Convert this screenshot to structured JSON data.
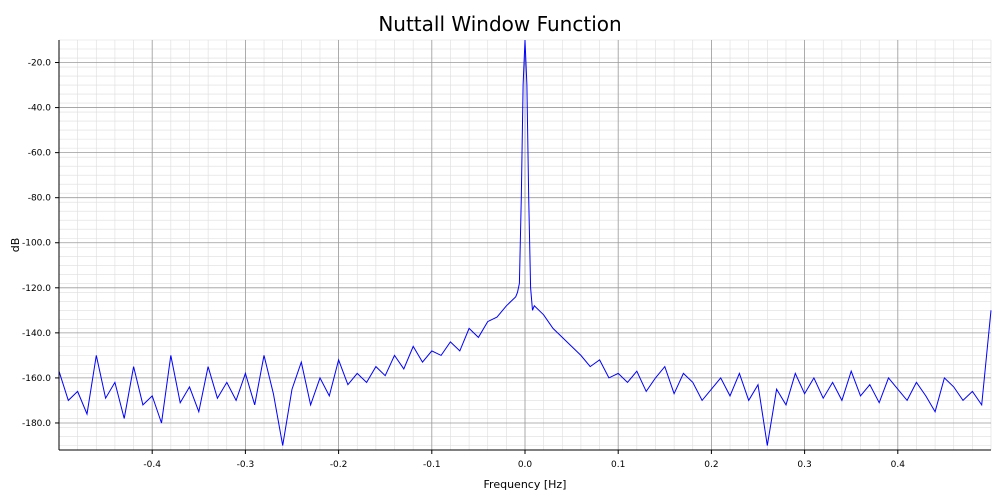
{
  "chart_data": {
    "type": "line",
    "title": "Nuttall Window Function",
    "xlabel": "Frequency [Hz]",
    "ylabel": "dB",
    "xlim": [
      -0.5,
      0.5
    ],
    "ylim": [
      -192,
      -10
    ],
    "x_ticks": [
      -0.4,
      -0.3,
      -0.2,
      -0.1,
      0.0,
      0.1,
      0.2,
      0.3,
      0.4
    ],
    "x_tick_labels": [
      "-0.4",
      "-0.3",
      "-0.2",
      "-0.1",
      "0.0",
      "0.1",
      "0.2",
      "0.3",
      "0.4"
    ],
    "y_ticks": [
      -180,
      -160,
      -140,
      -120,
      -100,
      -80,
      -60,
      -40,
      -20
    ],
    "y_tick_labels": [
      "-180.0",
      "-160.0",
      "-140.0",
      "-120.0",
      "-100.0",
      "-80.0",
      "-60.0",
      "-40.0",
      "-20.0"
    ],
    "grid": "major and minor",
    "line_color": "#0000ff",
    "series": [
      {
        "x": [
          -0.5,
          -0.49,
          -0.48,
          -0.47,
          -0.46,
          -0.45,
          -0.44,
          -0.43,
          -0.42,
          -0.41,
          -0.4,
          -0.39,
          -0.38,
          -0.37,
          -0.36,
          -0.35,
          -0.34,
          -0.33,
          -0.32,
          -0.31,
          -0.3,
          -0.29,
          -0.28,
          -0.27,
          -0.26,
          -0.25,
          -0.24,
          -0.23,
          -0.22,
          -0.21,
          -0.2,
          -0.19,
          -0.18,
          -0.17,
          -0.16,
          -0.15,
          -0.14,
          -0.13,
          -0.12,
          -0.11,
          -0.1,
          -0.09,
          -0.08,
          -0.07,
          -0.06,
          -0.05,
          -0.04,
          -0.03,
          -0.02,
          -0.01,
          -0.008,
          -0.006,
          -0.004,
          -0.002,
          0.0,
          0.002,
          0.004,
          0.006,
          0.008,
          0.01,
          0.02,
          0.03,
          0.04,
          0.05,
          0.06,
          0.07,
          0.08,
          0.09,
          0.1,
          0.11,
          0.12,
          0.13,
          0.14,
          0.15,
          0.16,
          0.17,
          0.18,
          0.19,
          0.2,
          0.21,
          0.22,
          0.23,
          0.24,
          0.25,
          0.26,
          0.27,
          0.28,
          0.29,
          0.3,
          0.31,
          0.32,
          0.33,
          0.34,
          0.35,
          0.36,
          0.37,
          0.38,
          0.39,
          0.4,
          0.41,
          0.42,
          0.43,
          0.44,
          0.45,
          0.46,
          0.47,
          0.48,
          0.49,
          0.5
        ],
        "y": [
          -157,
          -170,
          -166,
          -176,
          -150,
          -169,
          -162,
          -178,
          -155,
          -172,
          -168,
          -180,
          -150,
          -171,
          -164,
          -175,
          -155,
          -169,
          -162,
          -170,
          -158,
          -172,
          -150,
          -167,
          -190,
          -165,
          -153,
          -172,
          -160,
          -168,
          -152,
          -163,
          -158,
          -162,
          -155,
          -159,
          -150,
          -156,
          -146,
          -153,
          -148,
          -150,
          -144,
          -148,
          -138,
          -142,
          -135,
          -133,
          -128,
          -124,
          -122,
          -118,
          -80,
          -30,
          -10,
          -30,
          -80,
          -120,
          -130,
          -128,
          -132,
          -138,
          -142,
          -146,
          -150,
          -155,
          -152,
          -160,
          -158,
          -162,
          -157,
          -166,
          -160,
          -155,
          -167,
          -158,
          -162,
          -170,
          -165,
          -160,
          -168,
          -158,
          -170,
          -163,
          -190,
          -165,
          -172,
          -158,
          -167,
          -160,
          -169,
          -162,
          -170,
          -157,
          -168,
          -163,
          -171,
          -160,
          -165,
          -170,
          -162,
          -168,
          -175,
          -160,
          -164,
          -170,
          -166,
          -172,
          -130
        ]
      }
    ]
  }
}
